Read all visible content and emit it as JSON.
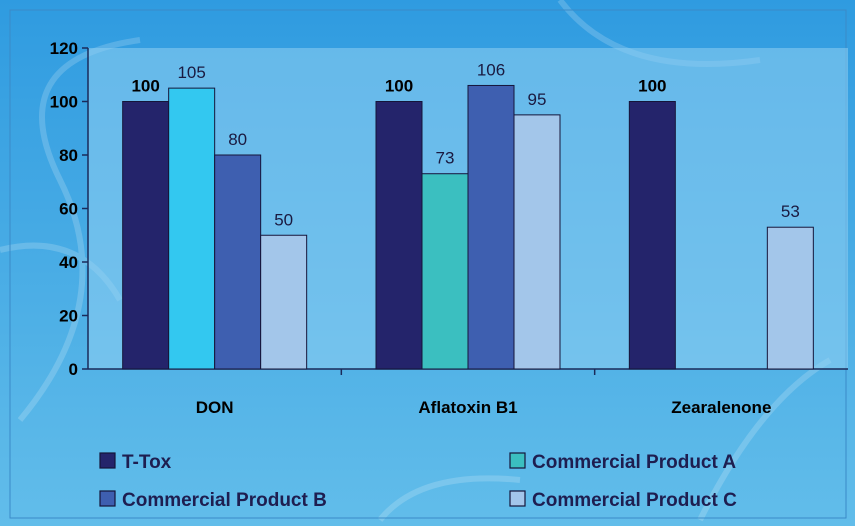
{
  "colors": {
    "background_top": "#2f9be0",
    "background_bottom": "#62bdea",
    "plot_area": "#8fd0f3",
    "axis": "#1a2a5a"
  },
  "chart_data": {
    "type": "bar",
    "title": "",
    "xlabel": "",
    "ylabel": "",
    "categories": [
      "DON",
      "Aflatoxin B1",
      "Zearalenone"
    ],
    "ylim": [
      0,
      120
    ],
    "yticks": [
      "0",
      "20",
      "40",
      "60",
      "80",
      "100",
      "120"
    ],
    "grid": false,
    "legend_position": "bottom",
    "series": [
      {
        "name": "T-Tox",
        "color": "#24246b",
        "bold_labels": true,
        "values": [
          100,
          100,
          100
        ]
      },
      {
        "name": "Commercial Product A",
        "color": "#33c8f0",
        "alt_color": "#3bbfc0",
        "bold_labels": false,
        "values": [
          105,
          73,
          null
        ]
      },
      {
        "name": "Commercial Product B",
        "color": "#3e5fb0",
        "bold_labels": false,
        "values": [
          80,
          106,
          null
        ]
      },
      {
        "name": "Commercial Product C",
        "color": "#a3c6ea",
        "bold_labels": false,
        "values": [
          50,
          95,
          53
        ]
      }
    ]
  }
}
